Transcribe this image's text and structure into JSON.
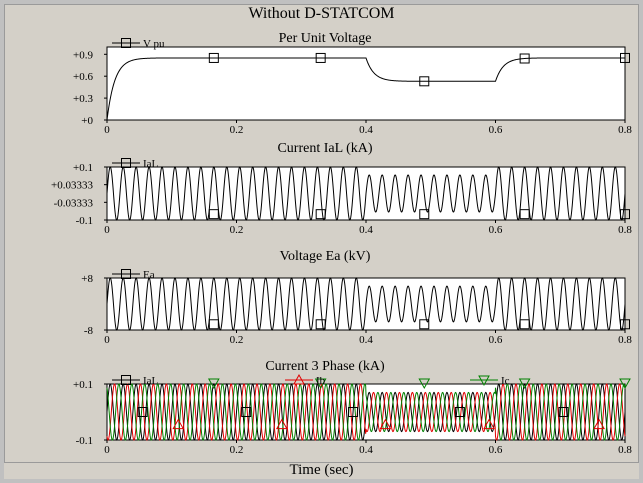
{
  "window": {
    "title": "Without D-STATCOM"
  },
  "chart_data": [
    {
      "type": "line",
      "title": "Per Unit Voltage",
      "series": [
        {
          "name": "V_pu",
          "color": "#000000",
          "description": "rises from 0 to ~0.85 pu, sag to ~0.53 pu between t=0.4 and 0.6 s, then recovers to ~0.85 pu"
        }
      ],
      "key_points": {
        "t": [
          0,
          0.02,
          0.05,
          0.1,
          0.4,
          0.45,
          0.6,
          0.65,
          0.8
        ],
        "v": [
          0,
          0.65,
          0.82,
          0.85,
          0.85,
          0.55,
          0.53,
          0.85,
          0.85
        ]
      },
      "yticks": [
        "+0.9",
        "+0.6",
        "+0.3",
        "+0"
      ],
      "xticks": [
        "0",
        "0.2",
        "0.4",
        "0.6",
        "0.8"
      ],
      "xlim": [
        0,
        0.8
      ],
      "ylim": [
        0,
        1.0
      ]
    },
    {
      "type": "line",
      "title": "Current IaL (kA)",
      "series": [
        {
          "name": "IaL",
          "color": "#000000"
        }
      ],
      "amplitude_normal": 0.1,
      "amplitude_sag": 0.07,
      "frequency_hz": 50,
      "sag_interval": [
        0.4,
        0.6
      ],
      "yticks": [
        "+0.1",
        "+0.03333",
        "-0.03333",
        "-0.1"
      ],
      "xticks": [
        "0",
        "0.2",
        "0.4",
        "0.6",
        "0.8"
      ],
      "xlim": [
        0,
        0.8
      ],
      "ylim": [
        -0.1,
        0.1
      ]
    },
    {
      "type": "line",
      "title": "Voltage Ea (kV)",
      "series": [
        {
          "name": "Ea",
          "color": "#000000"
        }
      ],
      "amplitude_normal": 8,
      "amplitude_sag": 5.5,
      "frequency_hz": 50,
      "sag_interval": [
        0.4,
        0.6
      ],
      "yticks": [
        "+8",
        "-8"
      ],
      "xticks": [
        "0",
        "0.2",
        "0.4",
        "0.6",
        "0.8"
      ],
      "xlim": [
        0,
        0.8
      ],
      "ylim": [
        -8,
        8
      ]
    },
    {
      "type": "line",
      "title": "Current 3 Phase (kA)",
      "series": [
        {
          "name": "IaL",
          "color": "#000000",
          "phase_deg": 0
        },
        {
          "name": "Ib",
          "color": "#e00000",
          "phase_deg": -120
        },
        {
          "name": "Ic",
          "color": "#008000",
          "phase_deg": 120
        }
      ],
      "amplitude_normal": 0.1,
      "amplitude_sag": 0.07,
      "frequency_hz": 50,
      "sag_interval": [
        0.4,
        0.6
      ],
      "yticks": [
        "+0.1",
        "-0.1"
      ],
      "xticks": [
        "0",
        "0.2",
        "0.4",
        "0.6",
        "0.8"
      ],
      "xlim": [
        0,
        0.8
      ],
      "ylim": [
        -0.1,
        0.1
      ]
    }
  ],
  "xaxis": {
    "label": "Time (sec)"
  }
}
